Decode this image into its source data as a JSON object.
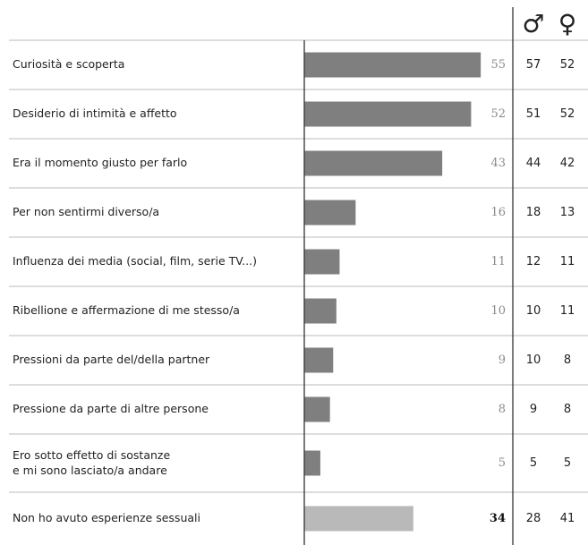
{
  "chart_data": {
    "type": "bar",
    "categories": [
      "Curiosità e scoperta",
      "Desiderio di intimità e affetto",
      "Era il momento giusto per farlo",
      "Per non sentirmi diverso/a",
      "Influenza dei media (social, film, serie TV...)",
      "Ribellione e affermazione di me stesso/a",
      "Pressioni da parte del/della partner",
      "Pressione da parte di altre persone",
      [
        "Ero sotto effetto di sostanze",
        "e mi sono lasciato/a andare"
      ],
      "Non ho avuto esperienze sessuali"
    ],
    "values": [
      55,
      52,
      43,
      16,
      11,
      10,
      9,
      8,
      5,
      34
    ],
    "bar_colors": [
      "#7f7f7f",
      "#7f7f7f",
      "#7f7f7f",
      "#7f7f7f",
      "#7f7f7f",
      "#7f7f7f",
      "#7f7f7f",
      "#7f7f7f",
      "#7f7f7f",
      "#b9b9b9"
    ],
    "xlim": [
      0,
      65
    ],
    "columns": [
      {
        "name": "♂",
        "values": [
          57,
          51,
          44,
          18,
          12,
          10,
          10,
          9,
          5,
          28
        ]
      },
      {
        "name": "♀",
        "values": [
          52,
          52,
          42,
          13,
          11,
          11,
          8,
          8,
          5,
          41
        ]
      }
    ]
  }
}
